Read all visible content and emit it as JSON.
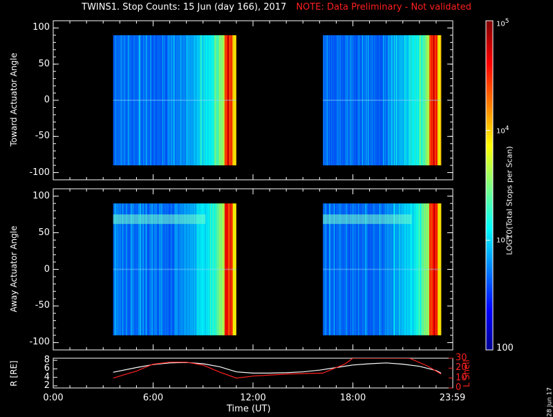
{
  "header": {
    "title": "TWINS1. Stop Counts: 15 Jun (day 166), 2017",
    "note": "NOTE: Data Preliminary - Not validated"
  },
  "print_date": "28 Jun 17",
  "colorbar": {
    "label": "LOG10(Total Stops per Scan)",
    "tick_labels": [
      "10^5",
      "10^4",
      "10^3",
      "100"
    ],
    "min": 100,
    "max": 100000,
    "scale": "log",
    "colormap": "jet"
  },
  "colors": {
    "background": "#000000",
    "axes": "#ffffff",
    "note_text": "#ff2020",
    "r_line": "#ffffff",
    "l_shell_line": "#ff2020"
  },
  "chart_data": [
    {
      "id": "toward",
      "type": "heatmap",
      "ylabel": "Toward Actuator Angle",
      "ylim": [
        -110,
        110
      ],
      "yticks": [
        100,
        50,
        0,
        -50,
        -100
      ],
      "xlim": [
        0,
        24
      ],
      "data_extent_angle": [
        -90,
        90
      ],
      "blocks": [
        {
          "start_hour": 3.6,
          "end_hour": 11.0
        },
        {
          "start_hour": 16.2,
          "end_hour": 23.3
        }
      ],
      "description": "counts rise from ~10^3 at block start to ~10^4.7 at block end"
    },
    {
      "id": "away",
      "type": "heatmap",
      "ylabel": "Away Actuator Angle",
      "ylim": [
        -110,
        110
      ],
      "yticks": [
        100,
        50,
        0,
        -50,
        -100
      ],
      "xlim": [
        0,
        24
      ],
      "data_extent_angle": [
        -90,
        90
      ],
      "blocks": [
        {
          "start_hour": 3.6,
          "end_hour": 11.0
        },
        {
          "start_hour": 16.2,
          "end_hour": 23.3
        }
      ]
    },
    {
      "id": "orbit",
      "type": "line",
      "xlabel": "Time (UT)",
      "xticks": [
        "0:00",
        "6:00",
        "12:00",
        "18:00",
        "23:59"
      ],
      "xtick_hours": [
        0,
        6,
        12,
        18,
        23.98
      ],
      "left_axis": {
        "label": "R [RE]",
        "ylim": [
          1.5,
          8.5
        ],
        "ticks": [
          2,
          4,
          6,
          8
        ]
      },
      "right_axis": {
        "label": "L Shell",
        "ylim": [
          0,
          30
        ],
        "ticks": [
          0,
          10,
          20,
          30
        ]
      },
      "series": [
        {
          "name": "R",
          "axis": "left",
          "x": [
            3.6,
            5.0,
            6.0,
            7.0,
            8.0,
            9.0,
            10.0,
            11.0,
            12.0,
            13.0,
            14.0,
            15.0,
            16.0,
            17.0,
            18.0,
            19.0,
            20.0,
            21.0,
            22.0,
            23.0,
            23.3
          ],
          "y": [
            5.2,
            6.3,
            7.0,
            7.4,
            7.5,
            7.2,
            6.5,
            5.3,
            5.0,
            5.0,
            5.1,
            5.3,
            5.7,
            6.3,
            6.9,
            7.2,
            7.4,
            7.1,
            6.6,
            5.6,
            5.0
          ]
        },
        {
          "name": "L Shell",
          "axis": "right",
          "x": [
            3.6,
            5.0,
            6.0,
            7.0,
            8.0,
            9.0,
            10.0,
            11.0,
            12.0,
            14.0,
            16.2,
            17.5,
            18.0,
            21.4,
            22.5,
            23.3
          ],
          "y": [
            10,
            17,
            24,
            26,
            26,
            23,
            16,
            10,
            12,
            14,
            15,
            24,
            30,
            30,
            22,
            14
          ]
        }
      ]
    }
  ]
}
